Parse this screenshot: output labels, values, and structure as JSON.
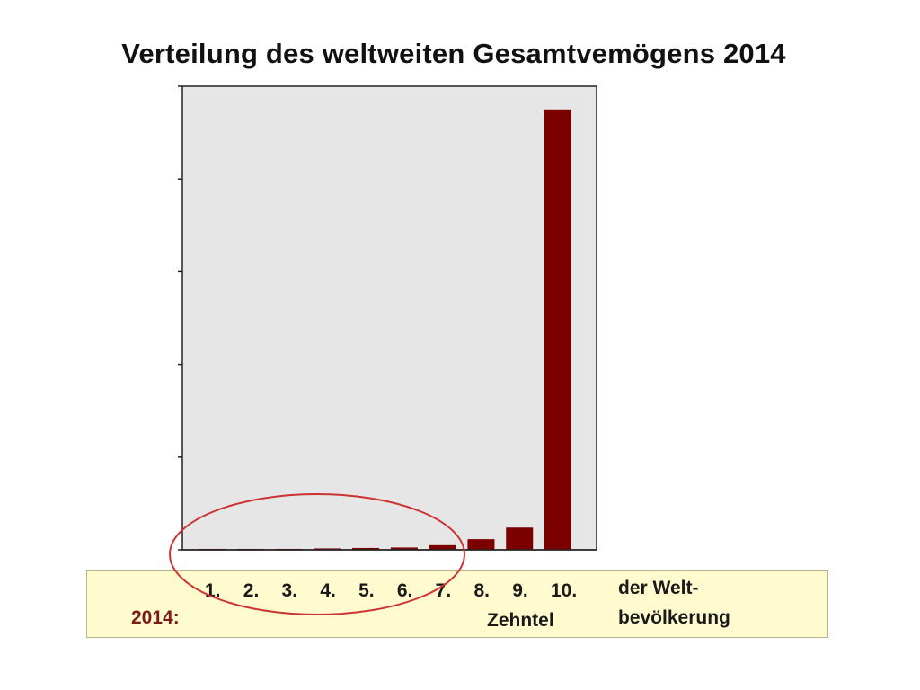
{
  "chart_data": {
    "type": "bar",
    "title": "Verteilung des weltweiten Gesamtvemögens 2014",
    "categories": [
      "1.",
      "2.",
      "3.",
      "4.",
      "5.",
      "6.",
      "7.",
      "8.",
      "9.",
      "10."
    ],
    "values": [
      0.2,
      0.2,
      0.2,
      0.3,
      0.4,
      0.5,
      1.0,
      2.3,
      4.8,
      95.0
    ],
    "ylim": [
      0,
      100
    ],
    "y_ticks": [
      0,
      20,
      40,
      60,
      80,
      100
    ],
    "tick_labels_visible": false,
    "grid": false,
    "plot_background": "#e6e6e6",
    "bar_color": "#7b0000",
    "highlight_ellipse_color": "#cc3333",
    "highlighted_categories": [
      "1.",
      "2.",
      "3.",
      "4.",
      "5.",
      "6.",
      "7."
    ]
  },
  "caption": {
    "year_label": "2014:",
    "unit_label": "Zehntel",
    "suffix_line1": "der Welt-",
    "suffix_line2": "bevölkerung",
    "background": "#fffbcf"
  }
}
